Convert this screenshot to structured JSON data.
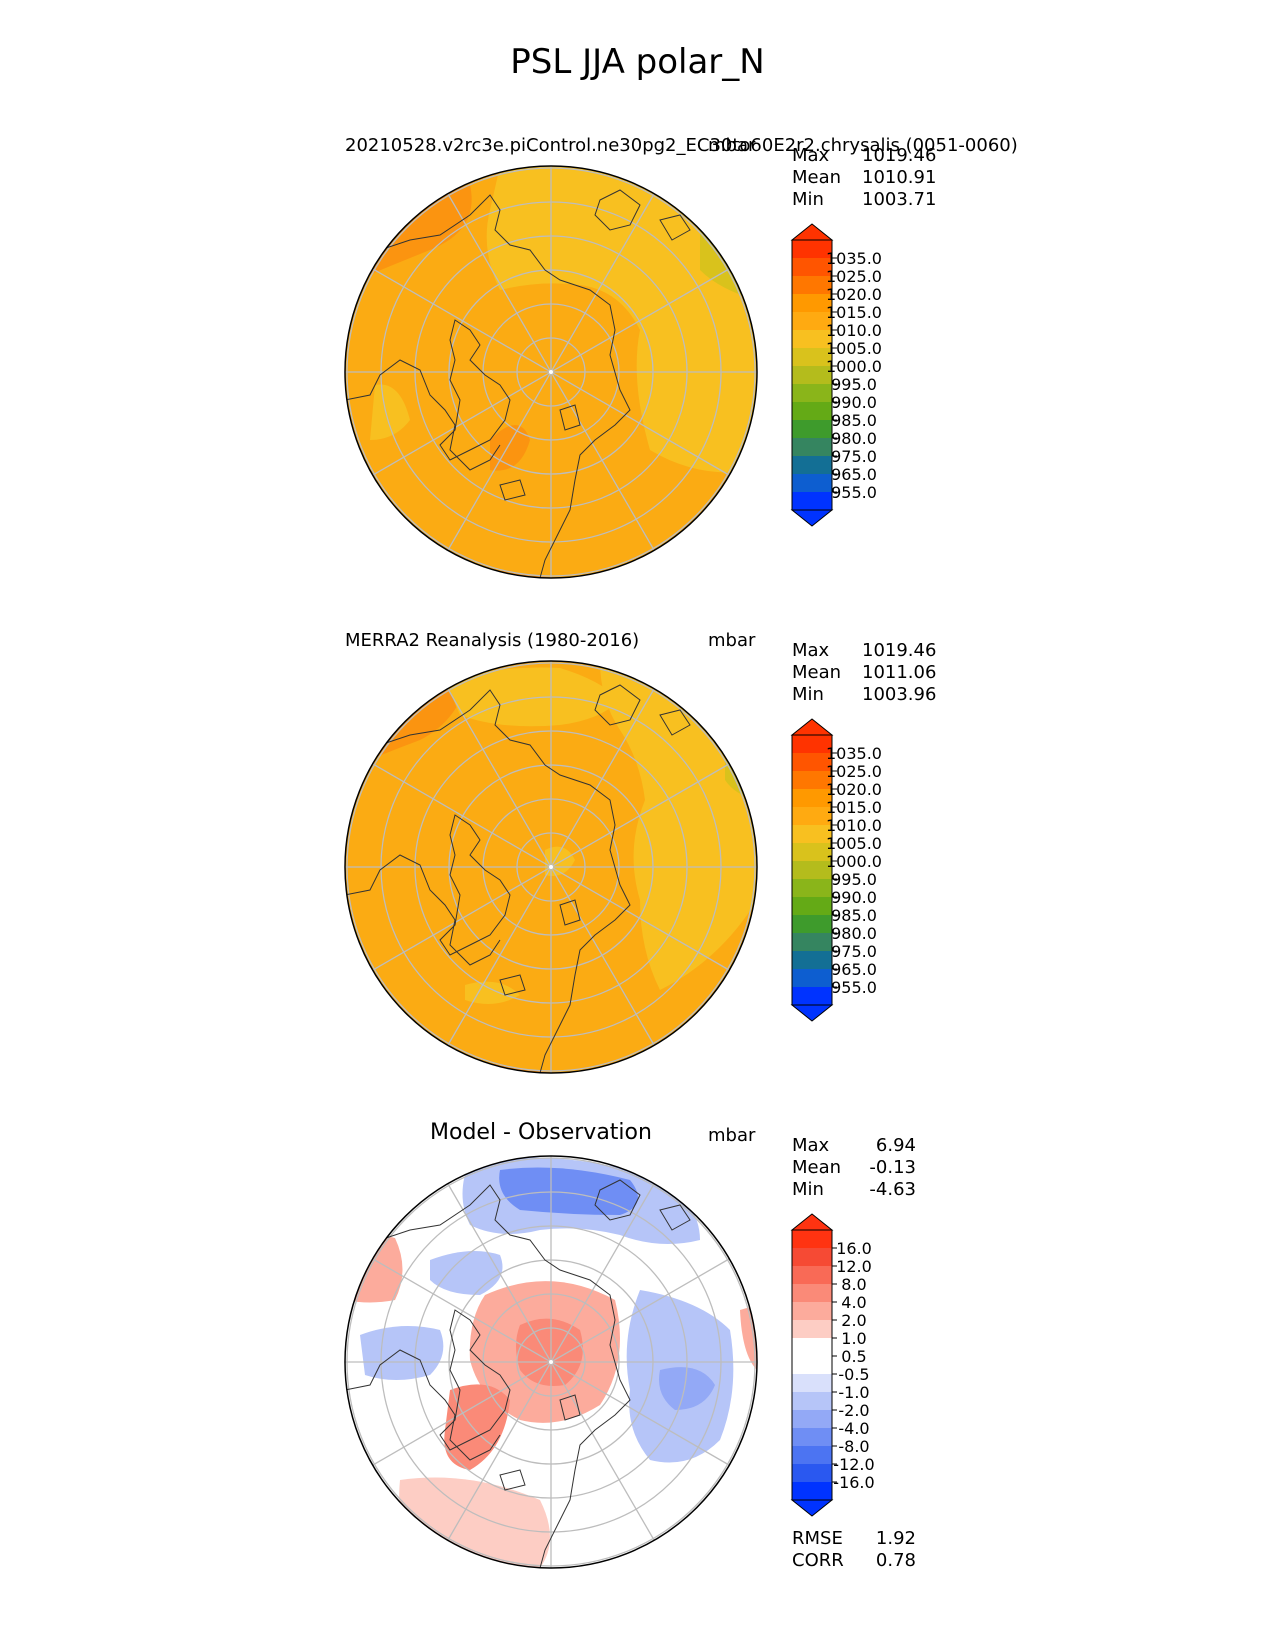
{
  "figure": {
    "title": "PSL JJA polar_N"
  },
  "panels": [
    {
      "title": "20210528.v2rc3e.piControl.ne30pg2_EC30to60E2r2.chrysalis (0051-0060)",
      "units": "mbar",
      "stats": [
        {
          "label": "Max",
          "value": "1019.46"
        },
        {
          "label": "Mean",
          "value": "1010.91"
        },
        {
          "label": "Min",
          "value": "1003.71"
        }
      ],
      "colorbar": {
        "tick_labels": [
          "1035.0",
          "1025.0",
          "1020.0",
          "1015.0",
          "1010.0",
          "1005.0",
          "1000.0",
          "995.0",
          "990.0",
          "985.0",
          "980.0",
          "975.0",
          "965.0",
          "955.0"
        ],
        "colors": [
          "#ff3300",
          "#ff5500",
          "#ff7700",
          "#ff9900",
          "#ffaa11",
          "#f8c020",
          "#d9c21c",
          "#b4bc1c",
          "#8ab51a",
          "#64aa16",
          "#3e9b2c",
          "#358560",
          "#136f95",
          "#0d5ed0",
          "#0033ff"
        ]
      }
    },
    {
      "title": "MERRA2 Reanalysis (1980-2016)",
      "units": "mbar",
      "stats": [
        {
          "label": "Max",
          "value": "1019.46"
        },
        {
          "label": "Mean",
          "value": "1011.06"
        },
        {
          "label": "Min",
          "value": "1003.96"
        }
      ],
      "colorbar": {
        "tick_labels": [
          "1035.0",
          "1025.0",
          "1020.0",
          "1015.0",
          "1010.0",
          "1005.0",
          "1000.0",
          "995.0",
          "990.0",
          "985.0",
          "980.0",
          "975.0",
          "965.0",
          "955.0"
        ],
        "colors": [
          "#ff3300",
          "#ff5500",
          "#ff7700",
          "#ff9900",
          "#ffaa11",
          "#f8c020",
          "#d9c21c",
          "#b4bc1c",
          "#8ab51a",
          "#64aa16",
          "#3e9b2c",
          "#358560",
          "#136f95",
          "#0d5ed0",
          "#0033ff"
        ]
      }
    },
    {
      "title": "Model - Observation",
      "units": "mbar",
      "stats": [
        {
          "label": "Max",
          "value": "6.94"
        },
        {
          "label": "Mean",
          "value": "-0.13"
        },
        {
          "label": "Min",
          "value": "-4.63"
        }
      ],
      "metrics": [
        {
          "label": "RMSE",
          "value": "1.92"
        },
        {
          "label": "CORR",
          "value": "0.78"
        }
      ],
      "colorbar": {
        "tick_labels": [
          "16.0",
          "12.0",
          "8.0",
          "4.0",
          "2.0",
          "1.0",
          "0.5",
          "-0.5",
          "-1.0",
          "-2.0",
          "-4.0",
          "-8.0",
          "-12.0",
          "-16.0"
        ],
        "colors": [
          "#ff3311",
          "#f64a34",
          "#f96a56",
          "#fa8a78",
          "#fcab9c",
          "#fdcdc4",
          "#ffffff",
          "#ffffff",
          "#d9e0fb",
          "#b6c5f8",
          "#93a9f6",
          "#6f8ef4",
          "#4c74f2",
          "#2a58f0",
          "#0033ff"
        ]
      }
    }
  ]
}
